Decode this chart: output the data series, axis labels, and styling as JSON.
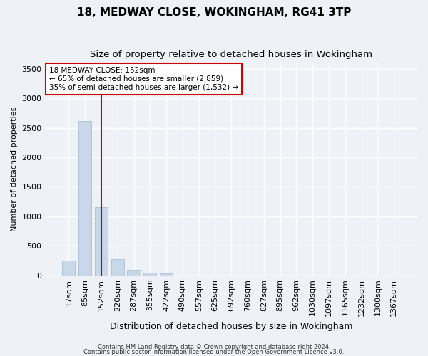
{
  "title1": "18, MEDWAY CLOSE, WOKINGHAM, RG41 3TP",
  "title2": "Size of property relative to detached houses in Wokingham",
  "xlabel": "Distribution of detached houses by size in Wokingham",
  "ylabel": "Number of detached properties",
  "bar_labels": [
    "17sqm",
    "85sqm",
    "152sqm",
    "220sqm",
    "287sqm",
    "355sqm",
    "422sqm",
    "490sqm",
    "557sqm",
    "625sqm",
    "692sqm",
    "760sqm",
    "827sqm",
    "895sqm",
    "962sqm",
    "1030sqm",
    "1097sqm",
    "1165sqm",
    "1232sqm",
    "1300sqm",
    "1367sqm"
  ],
  "bar_values": [
    255,
    2620,
    1150,
    270,
    100,
    48,
    38,
    0,
    0,
    0,
    0,
    0,
    0,
    0,
    0,
    0,
    0,
    0,
    0,
    0,
    0
  ],
  "bar_color": "#c8d8e8",
  "bar_edge_color": "#a0b8cc",
  "marker_index": 2,
  "marker_color": "#cc0000",
  "ylim": [
    0,
    3600
  ],
  "yticks": [
    0,
    500,
    1000,
    1500,
    2000,
    2500,
    3000,
    3500
  ],
  "annotation_title": "18 MEDWAY CLOSE: 152sqm",
  "annotation_line1": "← 65% of detached houses are smaller (2,859)",
  "annotation_line2": "35% of semi-detached houses are larger (1,532) →",
  "footnote1": "Contains HM Land Registry data © Crown copyright and database right 2024.",
  "footnote2": "Contains public sector information licensed under the Open Government Licence v3.0.",
  "bg_color": "#eef2f7",
  "grid_color": "#ffffff",
  "title1_fontsize": 11,
  "title2_fontsize": 9.5,
  "ylabel_fontsize": 8,
  "xlabel_fontsize": 9,
  "tick_fontsize": 8,
  "annot_fontsize": 7.5,
  "footnote_fontsize": 6
}
